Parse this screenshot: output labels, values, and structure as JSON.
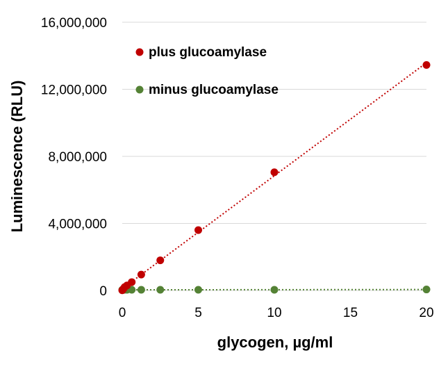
{
  "chart_data": {
    "type": "scatter",
    "xlabel": "glycogen, µg/ml",
    "ylabel": "Luminescence (RLU)",
    "xlim": [
      0,
      20
    ],
    "ylim": [
      0,
      16000000
    ],
    "x_ticks": [
      0,
      5,
      10,
      15,
      20
    ],
    "y_ticks": [
      0,
      4000000,
      8000000,
      12000000,
      16000000
    ],
    "x_tick_labels": [
      "0",
      "5",
      "10",
      "15",
      "20"
    ],
    "y_tick_labels": [
      "0",
      "4,000,000",
      "8,000,000",
      "12,000,000",
      "16,000,000"
    ],
    "grid": "horizontal",
    "legend_position": "top-left",
    "series": [
      {
        "name": "plus glucoamylase",
        "color": "#c00000",
        "trendline": "linear-dotted",
        "x": [
          0,
          0.078,
          0.156,
          0.3125,
          0.625,
          1.25,
          2.5,
          5,
          10,
          20
        ],
        "y": [
          10000,
          100000,
          200000,
          300000,
          500000,
          950000,
          1800000,
          3600000,
          7050000,
          13450000
        ]
      },
      {
        "name": "minus glucoamylase",
        "color": "#548235",
        "trendline": "linear-dotted",
        "x": [
          0,
          0.078,
          0.156,
          0.3125,
          0.625,
          1.25,
          2.5,
          5,
          10,
          20
        ],
        "y": [
          40000,
          40000,
          40000,
          40000,
          40000,
          40000,
          40000,
          40000,
          40000,
          60000
        ]
      }
    ]
  }
}
